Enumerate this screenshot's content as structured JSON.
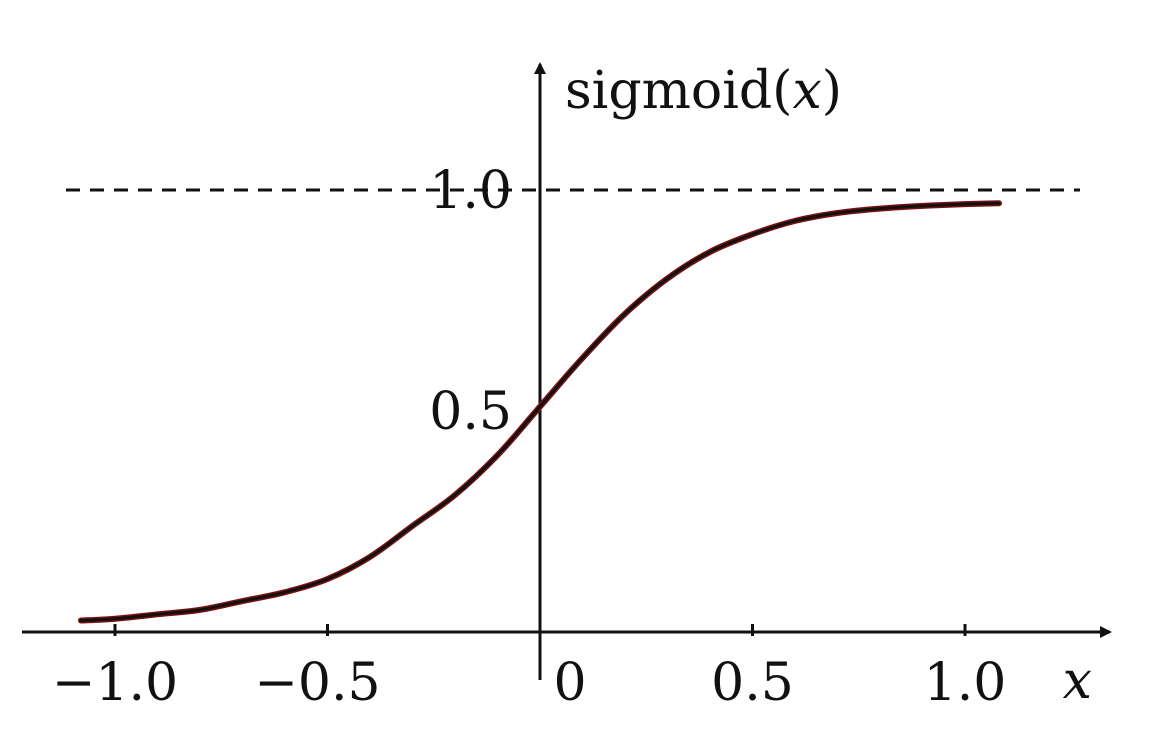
{
  "chart_data": {
    "type": "line",
    "title": "",
    "xlabel": "x",
    "ylabel_prefix": "sigmoid(",
    "ylabel_var": "x",
    "ylabel_suffix": ")",
    "xlim": [
      -1.1,
      1.3
    ],
    "ylim": [
      0,
      1.16
    ],
    "x_ticks": [
      -1.0,
      -0.5,
      0,
      0.5,
      1.0
    ],
    "x_tick_labels": [
      "−1.0",
      "−0.5",
      "0",
      "0.5",
      "1.0"
    ],
    "y_ticks": [
      0.5,
      1.0
    ],
    "y_tick_labels": [
      "0.5",
      "1.0"
    ],
    "asymptote": 1.0,
    "series": [
      {
        "x": [
          -1.08,
          -1.0,
          -0.9,
          -0.8,
          -0.7,
          -0.6,
          -0.5,
          -0.4,
          -0.3,
          -0.2,
          -0.1,
          0.0,
          0.1,
          0.2,
          0.3,
          0.4,
          0.5,
          0.6,
          0.7,
          0.8,
          0.9,
          1.0,
          1.08
        ],
        "y": [
          0.026,
          0.03,
          0.04,
          0.05,
          0.07,
          0.09,
          0.12,
          0.17,
          0.24,
          0.31,
          0.4,
          0.51,
          0.62,
          0.72,
          0.8,
          0.86,
          0.9,
          0.93,
          0.948,
          0.958,
          0.964,
          0.968,
          0.97
        ],
        "color": "#7a1010"
      }
    ],
    "grid": false,
    "legend": "none"
  }
}
